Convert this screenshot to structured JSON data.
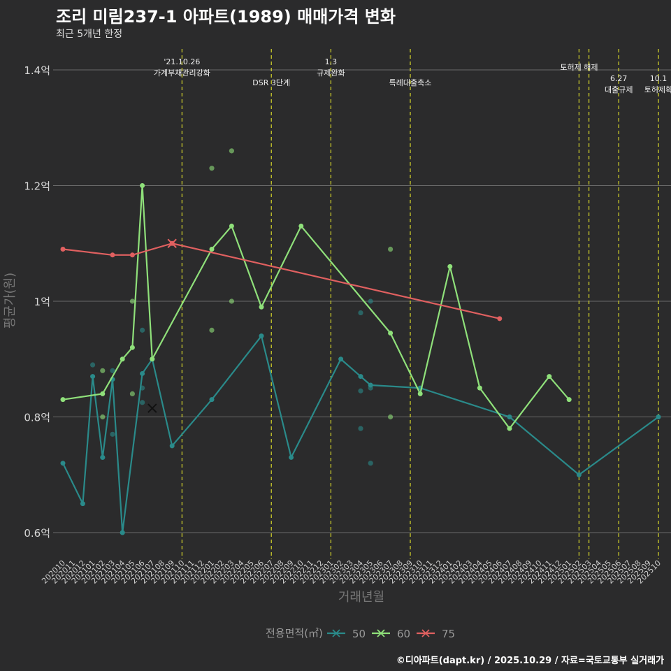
{
  "title": "조리 미림237-1 아파트(1989) 매매가격 변화",
  "subtitle": "최근 5개년 한정",
  "caption": "©디아파트(dapt.kr) / 2025.10.29 / 자료=국토교통부 실거래가",
  "chart_data": {
    "type": "line",
    "xlabel": "거래년월",
    "ylabel": "평균가(원)",
    "ylim": [
      0.56,
      1.44
    ],
    "y_ticks": [
      {
        "value": 0.6,
        "label": "0.6억"
      },
      {
        "value": 0.8,
        "label": "0.8억"
      },
      {
        "value": 1.0,
        "label": "1억"
      },
      {
        "value": 1.2,
        "label": "1.2억"
      },
      {
        "value": 1.4,
        "label": "1.4억"
      }
    ],
    "categories": [
      "202010",
      "202011",
      "202012",
      "202101",
      "202102",
      "202103",
      "202104",
      "202105",
      "202106",
      "202107",
      "202108",
      "202109",
      "202110",
      "202111",
      "202112",
      "202201",
      "202202",
      "202203",
      "202204",
      "202205",
      "202206",
      "202207",
      "202208",
      "202209",
      "202210",
      "202211",
      "202212",
      "202301",
      "202302",
      "202303",
      "202304",
      "202305",
      "202306",
      "202307",
      "202308",
      "202309",
      "202310",
      "202311",
      "202312",
      "202401",
      "202402",
      "202403",
      "202404",
      "202405",
      "202406",
      "202407",
      "202408",
      "202409",
      "202410",
      "202411",
      "202412",
      "202501",
      "202502",
      "202503",
      "202504",
      "202505",
      "202506",
      "202507",
      "202508",
      "202509",
      "202510"
    ],
    "legend_title": "전용면적(㎡)",
    "series": [
      {
        "name": "50",
        "color": "#2a8a8a",
        "points": [
          [
            "202010",
            0.72
          ],
          [
            "202012",
            0.65
          ],
          [
            "202101",
            0.87
          ],
          [
            "202102",
            0.73
          ],
          [
            "202103",
            0.865
          ],
          [
            "202104",
            0.6
          ],
          [
            "202106",
            0.875
          ],
          [
            "202107",
            0.9
          ],
          [
            "202109",
            0.75
          ],
          [
            "202201",
            0.83
          ],
          [
            "202206",
            0.94
          ],
          [
            "202209",
            0.73
          ],
          [
            "202302",
            0.9
          ],
          [
            "202304",
            0.87
          ],
          [
            "202305",
            0.855
          ],
          [
            "202310",
            0.85
          ],
          [
            "202407",
            0.8
          ],
          [
            "202502",
            0.7
          ],
          [
            "202510",
            0.8
          ]
        ]
      },
      {
        "name": "60",
        "color": "#8fe07a",
        "points": [
          [
            "202010",
            0.83
          ],
          [
            "202102",
            0.84
          ],
          [
            "202104",
            0.9
          ],
          [
            "202105",
            0.92
          ],
          [
            "202106",
            1.2
          ],
          [
            "202107",
            0.9
          ],
          [
            "202201",
            1.09
          ],
          [
            "202203",
            1.13
          ],
          [
            "202206",
            0.99
          ],
          [
            "202210",
            1.13
          ],
          [
            "202307",
            0.945
          ],
          [
            "202310",
            0.84
          ],
          [
            "202401",
            1.06
          ],
          [
            "202404",
            0.85
          ],
          [
            "202407",
            0.78
          ],
          [
            "202411",
            0.87
          ],
          [
            "202501",
            0.83
          ]
        ]
      },
      {
        "name": "75",
        "color": "#e06060",
        "points": [
          [
            "202010",
            1.09
          ],
          [
            "202103",
            1.08
          ],
          [
            "202105",
            1.08
          ],
          [
            "202109",
            1.1
          ],
          [
            "202406",
            0.97
          ]
        ]
      }
    ],
    "scatter": [
      {
        "series": "50",
        "points": [
          [
            "202101",
            0.89
          ],
          [
            "202102",
            0.73
          ],
          [
            "202103",
            0.77
          ],
          [
            "202103",
            0.88
          ],
          [
            "202104",
            0.6
          ],
          [
            "202106",
            0.95
          ],
          [
            "202106",
            0.85
          ],
          [
            "202106",
            0.825
          ],
          [
            "202304",
            0.98
          ],
          [
            "202304",
            0.845
          ],
          [
            "202304",
            0.78
          ],
          [
            "202305",
            1.0
          ],
          [
            "202305",
            0.85
          ],
          [
            "202305",
            0.72
          ]
        ]
      },
      {
        "series": "60",
        "points": [
          [
            "202102",
            0.88
          ],
          [
            "202102",
            0.8
          ],
          [
            "202105",
            0.84
          ],
          [
            "202105",
            1.0
          ],
          [
            "202201",
            1.23
          ],
          [
            "202201",
            0.95
          ],
          [
            "202203",
            1.26
          ],
          [
            "202203",
            1.0
          ],
          [
            "202307",
            1.09
          ],
          [
            "202307",
            0.8
          ]
        ]
      }
    ],
    "x_marker": {
      "series": "50",
      "at": [
        "202107",
        0.815
      ]
    },
    "events": [
      {
        "at": "202110",
        "lines": [
          "'21.10.26",
          "가계부채관리강화"
        ],
        "row": 0
      },
      {
        "at": "202207",
        "lines": [
          "DSR 3단계"
        ],
        "row": 2
      },
      {
        "at": "202301",
        "lines": [
          "1.3",
          "규제완화"
        ],
        "row": 0
      },
      {
        "at": "202309",
        "lines": [
          "특례대출축소"
        ],
        "row": 2
      },
      {
        "at": "202502",
        "lines": [
          "토허제 해제"
        ],
        "row": 1
      },
      {
        "at": "202503",
        "lines": [],
        "row": 1
      },
      {
        "at": "202506",
        "lines": [
          "6.27",
          "대출규제"
        ],
        "row": 3
      },
      {
        "at": "202510",
        "lines": [
          "10.1",
          "토허제확"
        ],
        "row": 3
      }
    ]
  }
}
